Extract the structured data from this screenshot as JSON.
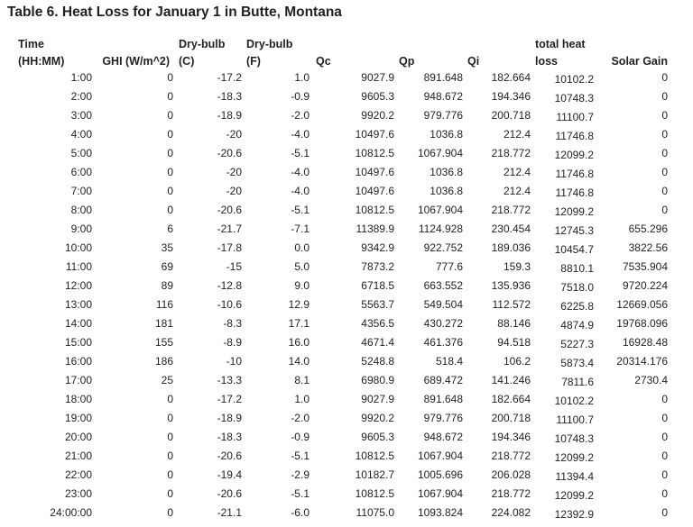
{
  "title": "Table 6. Heat Loss for January 1 in Butte, Montana",
  "colors": {
    "text": "#231f20",
    "background": "#ffffff"
  },
  "table": {
    "columns": [
      {
        "id": "time",
        "line1": "Time",
        "line2": "(HH:MM)"
      },
      {
        "id": "ghi",
        "line1": "",
        "line2": "GHI (W/m^2)"
      },
      {
        "id": "drybulb_c",
        "line1": "Dry-bulb",
        "line2": "(C)"
      },
      {
        "id": "drybulb_f",
        "line1": "Dry-bulb",
        "line2": "(F)"
      },
      {
        "id": "qc",
        "line1": "",
        "line2": "Qc"
      },
      {
        "id": "qp",
        "line1": "",
        "line2": "Qp"
      },
      {
        "id": "qi",
        "line1": "",
        "line2": "Qi"
      },
      {
        "id": "total_heat_loss",
        "line1": "total heat",
        "line2": "loss"
      },
      {
        "id": "solar_gain",
        "line1": "",
        "line2": "Solar Gain"
      }
    ],
    "rows": [
      [
        "1:00",
        "0",
        "-17.2",
        "1.0",
        "9027.9",
        "891.648",
        "182.664",
        "10102.2",
        "0"
      ],
      [
        "2:00",
        "0",
        "-18.3",
        "-0.9",
        "9605.3",
        "948.672",
        "194.346",
        "10748.3",
        "0"
      ],
      [
        "3:00",
        "0",
        "-18.9",
        "-2.0",
        "9920.2",
        "979.776",
        "200.718",
        "11100.7",
        "0"
      ],
      [
        "4:00",
        "0",
        "-20",
        "-4.0",
        "10497.6",
        "1036.8",
        "212.4",
        "11746.8",
        "0"
      ],
      [
        "5:00",
        "0",
        "-20.6",
        "-5.1",
        "10812.5",
        "1067.904",
        "218.772",
        "12099.2",
        "0"
      ],
      [
        "6:00",
        "0",
        "-20",
        "-4.0",
        "10497.6",
        "1036.8",
        "212.4",
        "11746.8",
        "0"
      ],
      [
        "7:00",
        "0",
        "-20",
        "-4.0",
        "10497.6",
        "1036.8",
        "212.4",
        "11746.8",
        "0"
      ],
      [
        "8:00",
        "0",
        "-20.6",
        "-5.1",
        "10812.5",
        "1067.904",
        "218.772",
        "12099.2",
        "0"
      ],
      [
        "9:00",
        "6",
        "-21.7",
        "-7.1",
        "11389.9",
        "1124.928",
        "230.454",
        "12745.3",
        "655.296"
      ],
      [
        "10:00",
        "35",
        "-17.8",
        "0.0",
        "9342.9",
        "922.752",
        "189.036",
        "10454.7",
        "3822.56"
      ],
      [
        "11:00",
        "69",
        "-15",
        "5.0",
        "7873.2",
        "777.6",
        "159.3",
        "8810.1",
        "7535.904"
      ],
      [
        "12:00",
        "89",
        "-12.8",
        "9.0",
        "6718.5",
        "663.552",
        "135.936",
        "7518.0",
        "9720.224"
      ],
      [
        "13:00",
        "116",
        "-10.6",
        "12.9",
        "5563.7",
        "549.504",
        "112.572",
        "6225.8",
        "12669.056"
      ],
      [
        "14:00",
        "181",
        "-8.3",
        "17.1",
        "4356.5",
        "430.272",
        "88.146",
        "4874.9",
        "19768.096"
      ],
      [
        "15:00",
        "155",
        "-8.9",
        "16.0",
        "4671.4",
        "461.376",
        "94.518",
        "5227.3",
        "16928.48"
      ],
      [
        "16:00",
        "186",
        "-10",
        "14.0",
        "5248.8",
        "518.4",
        "106.2",
        "5873.4",
        "20314.176"
      ],
      [
        "17:00",
        "25",
        "-13.3",
        "8.1",
        "6980.9",
        "689.472",
        "141.246",
        "7811.6",
        "2730.4"
      ],
      [
        "18:00",
        "0",
        "-17.2",
        "1.0",
        "9027.9",
        "891.648",
        "182.664",
        "10102.2",
        "0"
      ],
      [
        "19:00",
        "0",
        "-18.9",
        "-2.0",
        "9920.2",
        "979.776",
        "200.718",
        "11100.7",
        "0"
      ],
      [
        "20:00",
        "0",
        "-18.3",
        "-0.9",
        "9605.3",
        "948.672",
        "194.346",
        "10748.3",
        "0"
      ],
      [
        "21:00",
        "0",
        "-20.6",
        "-5.1",
        "10812.5",
        "1067.904",
        "218.772",
        "12099.2",
        "0"
      ],
      [
        "22:00",
        "0",
        "-19.4",
        "-2.9",
        "10182.7",
        "1005.696",
        "206.028",
        "11394.4",
        "0"
      ],
      [
        "23:00",
        "0",
        "-20.6",
        "-5.1",
        "10812.5",
        "1067.904",
        "218.772",
        "12099.2",
        "0"
      ],
      [
        "24:00:00",
        "0",
        "-21.1",
        "-6.0",
        "11075.0",
        "1093.824",
        "224.082",
        "12392.9",
        "0"
      ]
    ]
  }
}
